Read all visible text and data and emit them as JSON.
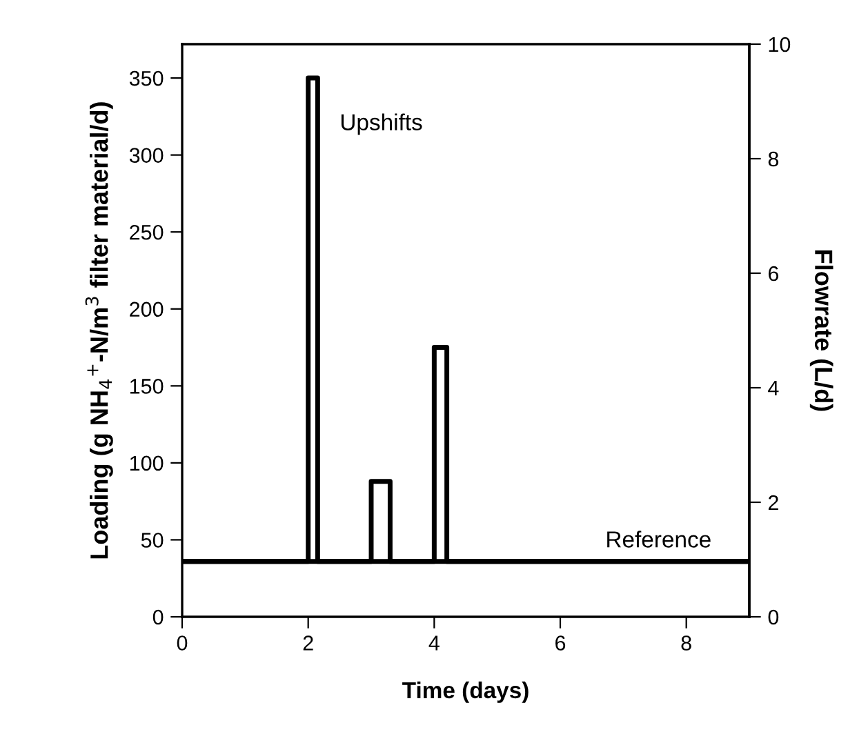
{
  "chart_data": {
    "type": "line",
    "xlabel": "Time (days)",
    "ylabel": "Loading (g NH$_{4}$$^{+}$-N/m$^{3}$ filter material/d)",
    "y2label": "Flowrate (L/d)",
    "series": [
      {
        "name": "Reference",
        "color": "#000000",
        "x": [
          0,
          9
        ],
        "values": [
          36,
          36
        ]
      },
      {
        "name": "Upshifts",
        "color": "#000000",
        "x": [
          0,
          2,
          2,
          2.15,
          2.15,
          3,
          3,
          3.3,
          3.3,
          4,
          4,
          4.2,
          4.2,
          9
        ],
        "values": [
          36,
          36,
          350,
          350,
          36,
          36,
          88,
          88,
          36,
          36,
          175,
          175,
          36,
          36
        ]
      }
    ],
    "xlim": [
      0,
      9
    ],
    "xticks": [
      0,
      2,
      4,
      6,
      8
    ],
    "ylim": [
      0,
      372
    ],
    "yticks": [
      0,
      50,
      100,
      150,
      200,
      250,
      300,
      350
    ],
    "y2lim": [
      0,
      10
    ],
    "y2ticks": [
      0,
      2,
      4,
      6,
      8,
      10
    ],
    "grid": false,
    "legend": false,
    "marker": "none",
    "line_style": "solid"
  }
}
